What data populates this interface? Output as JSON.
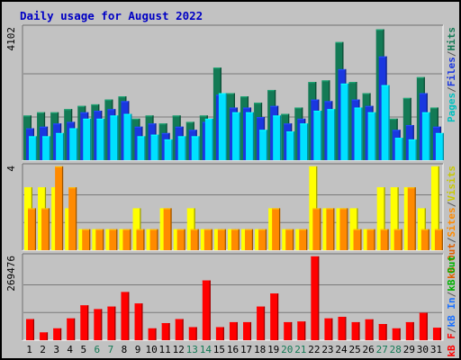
{
  "chart_data": {
    "type": "bar",
    "title": "Daily usage for August 2022",
    "categories": [
      "1",
      "2",
      "3",
      "4",
      "5",
      "6",
      "7",
      "8",
      "9",
      "10",
      "11",
      "12",
      "13",
      "14",
      "15",
      "16",
      "17",
      "18",
      "19",
      "20",
      "21",
      "22",
      "23",
      "24",
      "25",
      "26",
      "27",
      "28",
      "29",
      "30",
      "31"
    ],
    "weekend_days": [
      "6",
      "7",
      "13",
      "14",
      "20",
      "21",
      "27",
      "28"
    ],
    "panels": [
      {
        "id": "hits",
        "ymax_label": "4102",
        "ylim": [
          0,
          4102
        ],
        "series": [
          {
            "name": "Hits",
            "color": "#137a55",
            "values": [
              1400,
              1500,
              1500,
              1600,
              1700,
              1750,
              1900,
              2000,
              1300,
              1400,
              1150,
              1400,
              1200,
              1400,
              2900,
              2100,
              2000,
              1800,
              2200,
              1450,
              1650,
              2450,
              2500,
              3700,
              2450,
              2100,
              4100,
              1300,
              1950,
              2600,
              1650
            ]
          },
          {
            "name": "Files",
            "color": "#1a37e0",
            "values": [
              1000,
              1050,
              1150,
              1200,
              1500,
              1550,
              1600,
              1850,
              1050,
              1150,
              850,
              1050,
              950,
              1200,
              2050,
              1650,
              1650,
              1350,
              1700,
              1150,
              1300,
              1900,
              1850,
              2850,
              1900,
              1700,
              3250,
              950,
              1100,
              2100,
              1050
            ]
          },
          {
            "name": "Pages",
            "color": "#00e0ff",
            "values": [
              750,
              750,
              850,
              1000,
              1300,
              1300,
              1400,
              1450,
              750,
              800,
              650,
              750,
              750,
              1300,
              2100,
              1500,
              1500,
              950,
              1400,
              900,
              1150,
              1550,
              1600,
              2400,
              1650,
              1500,
              2350,
              700,
              650,
              1500,
              850
            ]
          }
        ],
        "axis_labels": [
          {
            "text": "Pages",
            "color": "#00c0c0"
          },
          {
            "text": "/",
            "color": "#555555"
          },
          {
            "text": "Files",
            "color": "#1a37e0"
          },
          {
            "text": "/",
            "color": "#555555"
          },
          {
            "text": "Hits",
            "color": "#137a55"
          }
        ]
      },
      {
        "id": "visits",
        "ymax_label": "4",
        "ylim": [
          0,
          4
        ],
        "series": [
          {
            "name": "Visits",
            "color": "#ffff00",
            "values": [
              3,
              3,
              3,
              2,
              1,
              1,
              1,
              1,
              2,
              1,
              2,
              1,
              2,
              1,
              1,
              1,
              1,
              1,
              2,
              1,
              1,
              4,
              2,
              2,
              2,
              1,
              3,
              3,
              3,
              2,
              4
            ]
          },
          {
            "name": "Sites",
            "color": "#ff8a00",
            "values": [
              2,
              2,
              4,
              3,
              1,
              1,
              1,
              1,
              1,
              1,
              2,
              1,
              1,
              1,
              1,
              1,
              1,
              1,
              2,
              1,
              1,
              2,
              2,
              2,
              1,
              1,
              1,
              1,
              3,
              1,
              1
            ]
          }
        ],
        "axis_labels": [
          {
            "text": "kB Out",
            "color": "#e06000"
          },
          {
            "text": "/",
            "color": "#555555"
          },
          {
            "text": "Sites",
            "color": "#ff8a00"
          },
          {
            "text": "/",
            "color": "#555555"
          },
          {
            "text": "Visits",
            "color": "#c8c800"
          }
        ]
      },
      {
        "id": "kbf",
        "ymax_label": "269476",
        "ylim": [
          0,
          269476
        ],
        "series": [
          {
            "name": "kB F",
            "color": "#ff0000",
            "values": [
              68000,
              25000,
              38000,
              70000,
              112000,
              100000,
              108000,
              155000,
              118000,
              38000,
              55000,
              68000,
              42000,
              192000,
              42000,
              58000,
              58000,
              108000,
              150000,
              58000,
              60000,
              269476,
              70000,
              75000,
              58000,
              67000,
              52000,
              38000,
              58000,
              88000,
              40000
            ]
          }
        ],
        "axis_labels": [
          {
            "text": "kB F",
            "color": "#ff0000"
          },
          {
            "text": "/",
            "color": "#555555"
          },
          {
            "text": "kB In",
            "color": "#1a70ff"
          },
          {
            "text": "/",
            "color": "#555555"
          },
          {
            "text": "kB Out",
            "color": "#00b000"
          }
        ]
      }
    ]
  },
  "colors": {
    "background": "#c2c2c2",
    "title": "#0000c4",
    "day_label": "#000000",
    "weekend_label": "#137a55",
    "gridline": "#7a7a7a"
  }
}
